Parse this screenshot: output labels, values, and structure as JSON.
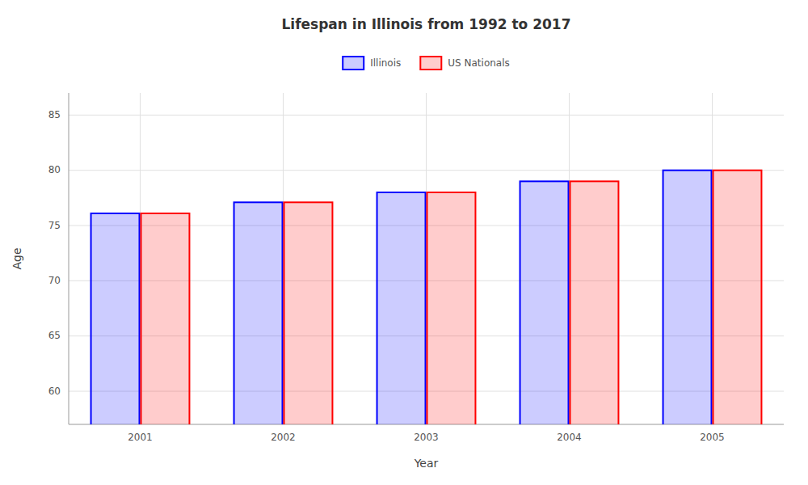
{
  "chart_data": {
    "type": "bar",
    "title": "Lifespan in Illinois from 1992 to 2017",
    "xlabel": "Year",
    "ylabel": "Age",
    "categories": [
      "2001",
      "2002",
      "2003",
      "2004",
      "2005"
    ],
    "series": [
      {
        "name": "Illinois",
        "color": "#0000ff",
        "values": [
          76.1,
          77.1,
          78.0,
          79.0,
          80.0
        ]
      },
      {
        "name": "US Nationals",
        "color": "#ff0000",
        "values": [
          76.1,
          77.1,
          78.0,
          79.0,
          80.0
        ]
      }
    ],
    "ylim": [
      57,
      87
    ],
    "yticks": [
      60,
      65,
      70,
      75,
      80,
      85
    ],
    "grid": true,
    "legend": "top"
  }
}
